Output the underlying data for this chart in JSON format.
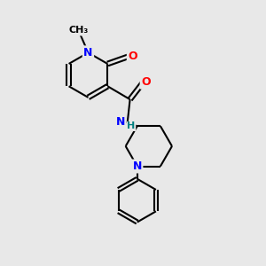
{
  "bg_color": "#e8e8e8",
  "bond_color": "#000000",
  "bond_width": 1.5,
  "atom_colors": {
    "N": "#0000ff",
    "O": "#ff0000",
    "H_color": "#008080",
    "C": "#000000"
  },
  "font_size": 9,
  "fig_size": [
    3.0,
    3.0
  ],
  "dpi": 100,
  "xlim": [
    0,
    10
  ],
  "ylim": [
    0,
    10
  ]
}
